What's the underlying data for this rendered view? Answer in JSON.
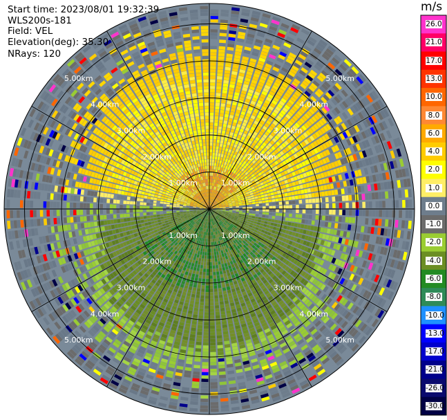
{
  "header": {
    "start_time": "Start time: 2023/08/01 19:32:39",
    "instrument": "WLS200s-181",
    "field": "Field: VEL",
    "elevation": "Elevation(deg): 35.30",
    "nrays": "NRays: 120"
  },
  "colorbar": {
    "unit": "m/s",
    "labels": [
      "26.0",
      "21.0",
      "17.0",
      "13.0",
      "10.0",
      "8.0",
      "6.0",
      "4.0",
      "2.0",
      "1.0",
      "0.0",
      "-1.0",
      "-2.0",
      "-4.0",
      "-6.0",
      "-8.0",
      "-10.0",
      "-13.0",
      "-17.0",
      "-21.0",
      "-26.0",
      "-30.0"
    ],
    "colors": [
      "#ff33cc",
      "#ff0066",
      "#ff0000",
      "#ff3300",
      "#ff6600",
      "#ff8833",
      "#ffaa00",
      "#ffcc00",
      "#ffff00",
      "#ffee66",
      "#6e7d8c",
      "#6b6b6b",
      "#9acd32",
      "#6b8e23",
      "#228b22",
      "#2e8b57",
      "#1e90ff",
      "#0000ff",
      "#0000cd",
      "#00008b",
      "#0a0a6e",
      "#000044"
    ]
  },
  "chart_data": {
    "type": "heatmap",
    "projection": "polar PPI",
    "field": "VEL",
    "units": "m/s",
    "nrays": 120,
    "range_rings_km": [
      1.0,
      2.0,
      3.0,
      4.0,
      5.0
    ],
    "range_ring_labels": [
      "1.00km",
      "2.00km",
      "3.00km",
      "4.00km",
      "5.00km"
    ],
    "azimuth_spokes_deg": [
      0,
      30,
      60,
      90,
      120,
      150,
      180,
      210,
      240,
      270,
      300,
      330
    ],
    "velocity_pattern": [
      {
        "sector": "north (270-90 deg, upper half)",
        "velocity_m_s": [
          2.0,
          6.0
        ],
        "description": "yellow/orange positive velocities"
      },
      {
        "sector": "south (90-270 deg, lower half)",
        "velocity_m_s": [
          -6.0,
          -2.0
        ],
        "description": "green negative velocities"
      },
      {
        "sector": "outer ranges > 4.5 km",
        "velocity_m_s": "noisy",
        "description": "gray with scattered colored noise"
      }
    ],
    "colorbar_range_m_s": [
      -30.0,
      26.0
    ]
  }
}
